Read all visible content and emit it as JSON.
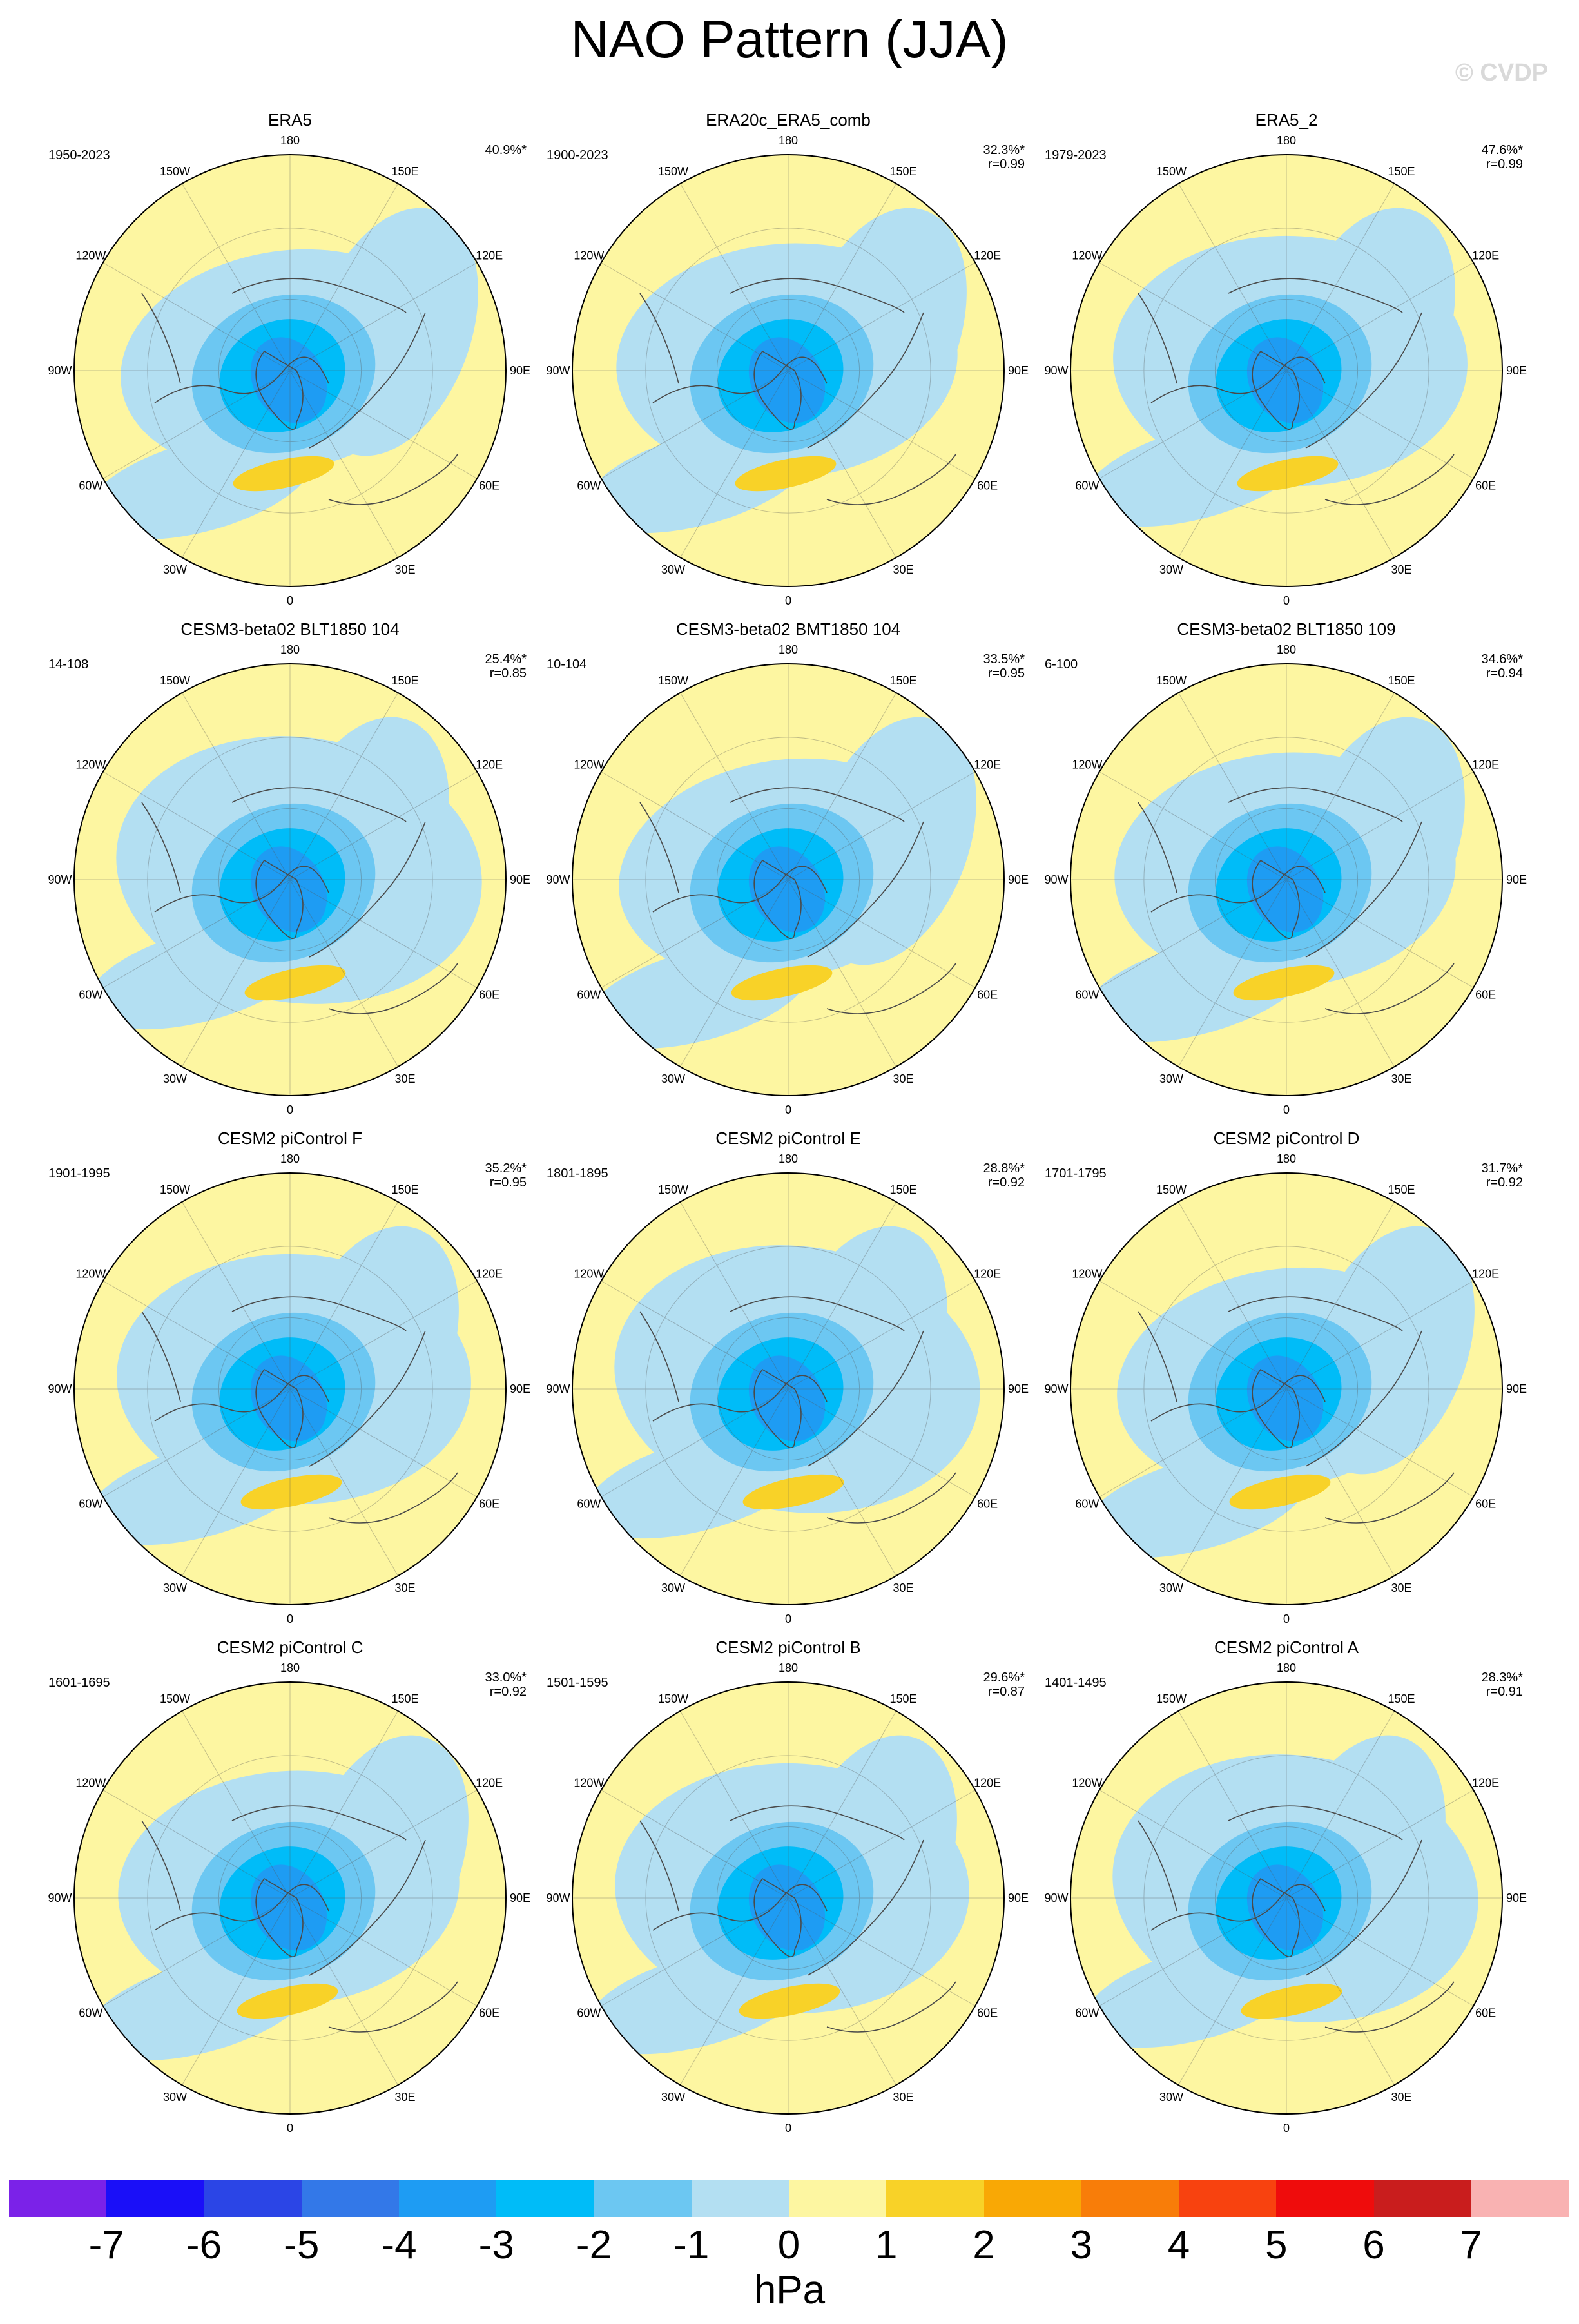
{
  "title": "NAO Pattern (JJA)",
  "watermark": "© CVDP",
  "longitude_labels": [
    "180",
    "150E",
    "120E",
    "90E",
    "60E",
    "30E",
    "0",
    "30W",
    "60W",
    "90W",
    "120W",
    "150W"
  ],
  "panels": [
    {
      "title": "ERA5",
      "period": "1950-2023",
      "pct": "40.9%*",
      "r": ""
    },
    {
      "title": "ERA20c_ERA5_comb",
      "period": "1900-2023",
      "pct": "32.3%*",
      "r": "r=0.99"
    },
    {
      "title": "ERA5_2",
      "period": "1979-2023",
      "pct": "47.6%*",
      "r": "r=0.99"
    },
    {
      "title": "CESM3-beta02 BLT1850 104",
      "period": "14-108",
      "pct": "25.4%*",
      "r": "r=0.85"
    },
    {
      "title": "CESM3-beta02 BMT1850 104",
      "period": "10-104",
      "pct": "33.5%*",
      "r": "r=0.95"
    },
    {
      "title": "CESM3-beta02 BLT1850 109",
      "period": "6-100",
      "pct": "34.6%*",
      "r": "r=0.94"
    },
    {
      "title": "CESM2 piControl F",
      "period": "1901-1995",
      "pct": "35.2%*",
      "r": "r=0.95"
    },
    {
      "title": "CESM2 piControl E",
      "period": "1801-1895",
      "pct": "28.8%*",
      "r": "r=0.92"
    },
    {
      "title": "CESM2 piControl D",
      "period": "1701-1795",
      "pct": "31.7%*",
      "r": "r=0.92"
    },
    {
      "title": "CESM2 piControl C",
      "period": "1601-1695",
      "pct": "33.0%*",
      "r": "r=0.92"
    },
    {
      "title": "CESM2 piControl B",
      "period": "1501-1595",
      "pct": "29.6%*",
      "r": "r=0.87"
    },
    {
      "title": "CESM2 piControl A",
      "period": "1401-1495",
      "pct": "28.3%*",
      "r": "r=0.91"
    }
  ],
  "colorbar": {
    "colors": [
      "#7b22e8",
      "#1a0ff8",
      "#2b45e6",
      "#3378e8",
      "#1e9cf3",
      "#00bcf8",
      "#6cc7f2",
      "#b3dff2",
      "#fdf6a1",
      "#f8d228",
      "#f9a805",
      "#f87d09",
      "#f8420f",
      "#ef0c0c",
      "#c91d1d",
      "#f9b2b2"
    ],
    "labels": [
      "-7",
      "-6",
      "-5",
      "-4",
      "-3",
      "-2",
      "-1",
      "0",
      "1",
      "2",
      "3",
      "4",
      "5",
      "6",
      "7"
    ],
    "units": "hPa"
  }
}
